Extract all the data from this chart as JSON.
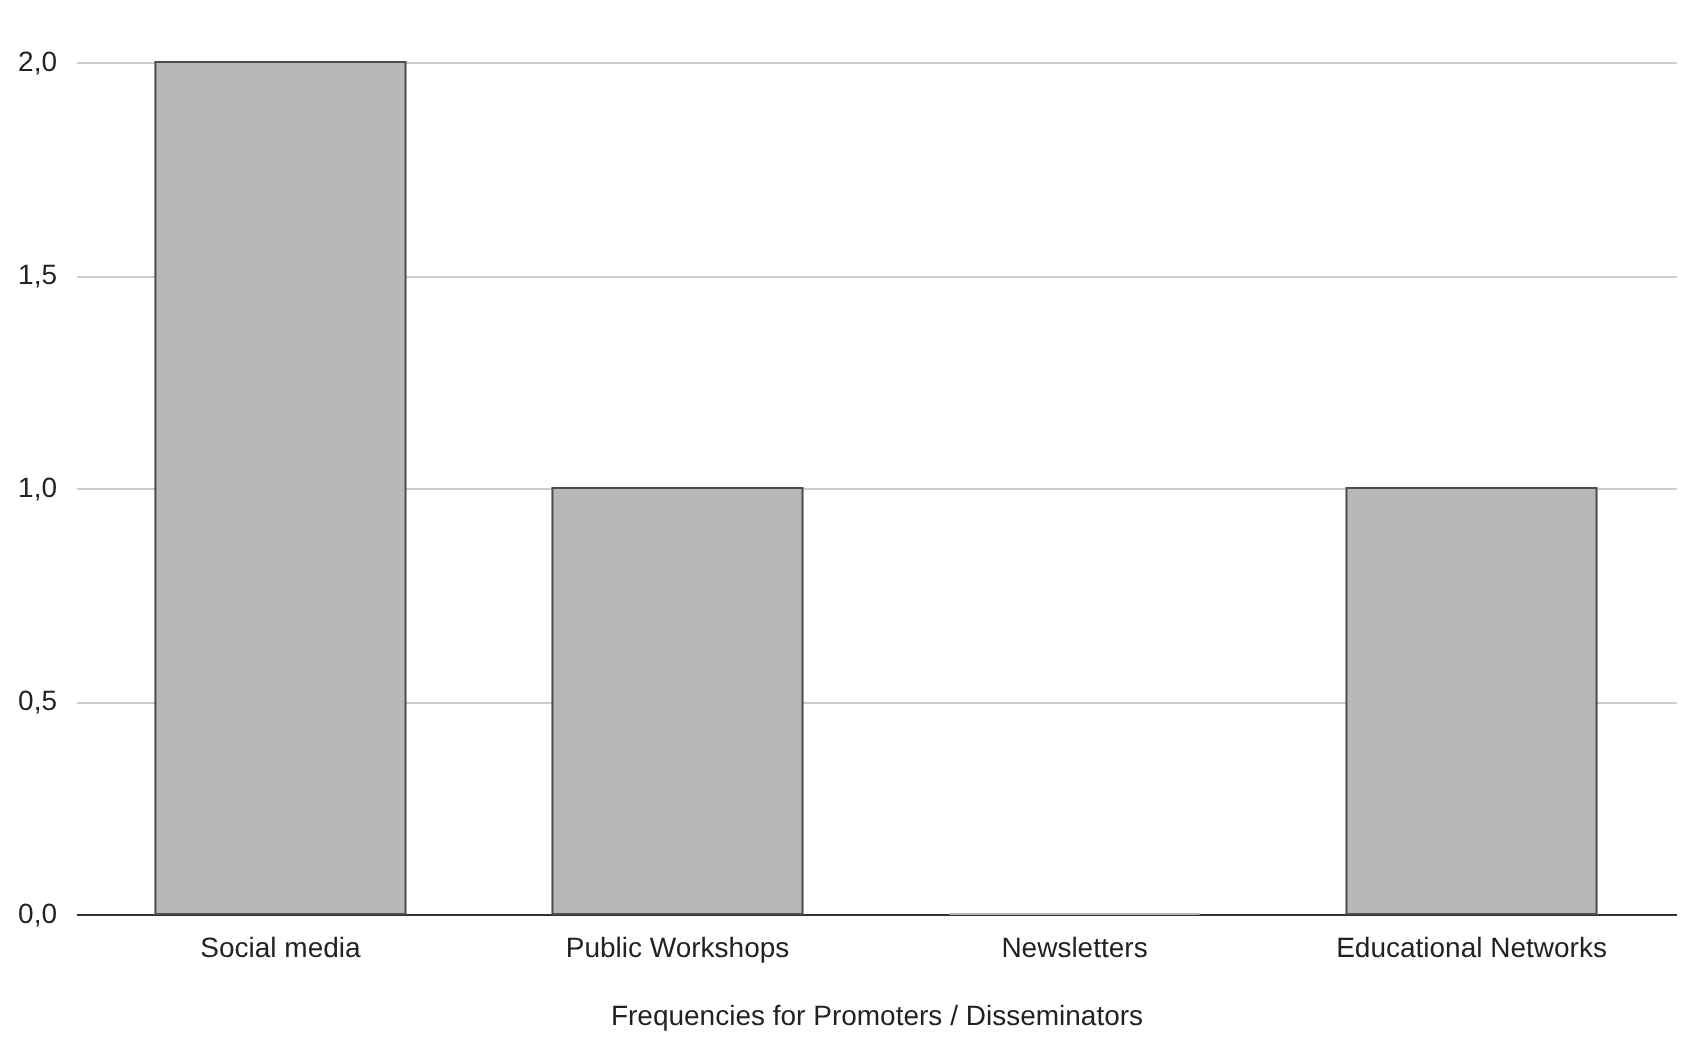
{
  "chart_data": {
    "type": "bar",
    "xlabel": "Frequencies for Promoters / Disseminators",
    "categories": [
      "Social media",
      "Public Workshops",
      "Newsletters",
      "Educational Networks"
    ],
    "values": [
      2,
      1,
      0,
      1
    ],
    "color": "#b7b7b7",
    "ylim": [
      0,
      2
    ],
    "yticks": [
      {
        "value": 0,
        "label": "0,0"
      },
      {
        "value": 0.5,
        "label": "0,5"
      },
      {
        "value": 1,
        "label": "1,0"
      },
      {
        "value": 1.5,
        "label": "1,5"
      },
      {
        "value": 2,
        "label": "2,0"
      }
    ],
    "grid": "y"
  }
}
